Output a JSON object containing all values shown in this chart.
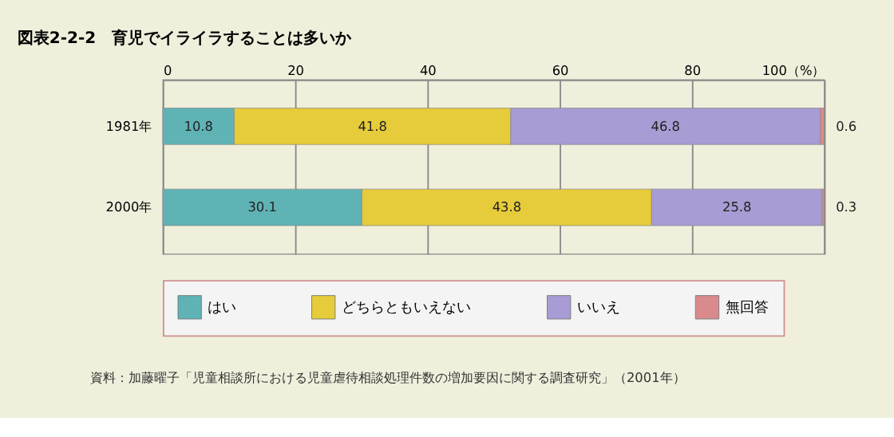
{
  "chart_data": {
    "type": "bar",
    "orientation": "horizontal",
    "stacked": true,
    "title": "図表2-2-2　育児でイライラすることは多いか",
    "categories": [
      "1981年",
      "2000年"
    ],
    "series": [
      {
        "name": "はい",
        "color": "#5fb3b5",
        "values": [
          10.8,
          30.1
        ]
      },
      {
        "name": "どちらともいえない",
        "color": "#e6cb3a",
        "values": [
          41.8,
          43.8
        ]
      },
      {
        "name": "いいえ",
        "color": "#a99bd3",
        "values": [
          46.8,
          25.8
        ]
      },
      {
        "name": "無回答",
        "color": "#d98a8c",
        "values": [
          0.6,
          0.3
        ]
      }
    ],
    "xlim": [
      0,
      100
    ],
    "xticks": [
      0,
      20,
      40,
      60,
      80,
      {
        "value": 100,
        "label": "100（%）"
      }
    ],
    "grid": "x",
    "legend": "bottom",
    "data_labels": true,
    "annotations": [
      "資料：加藤曜子「児童相談所における児童虐待相談処理件数の増加要因に関する調査研究」（2001年）"
    ]
  }
}
